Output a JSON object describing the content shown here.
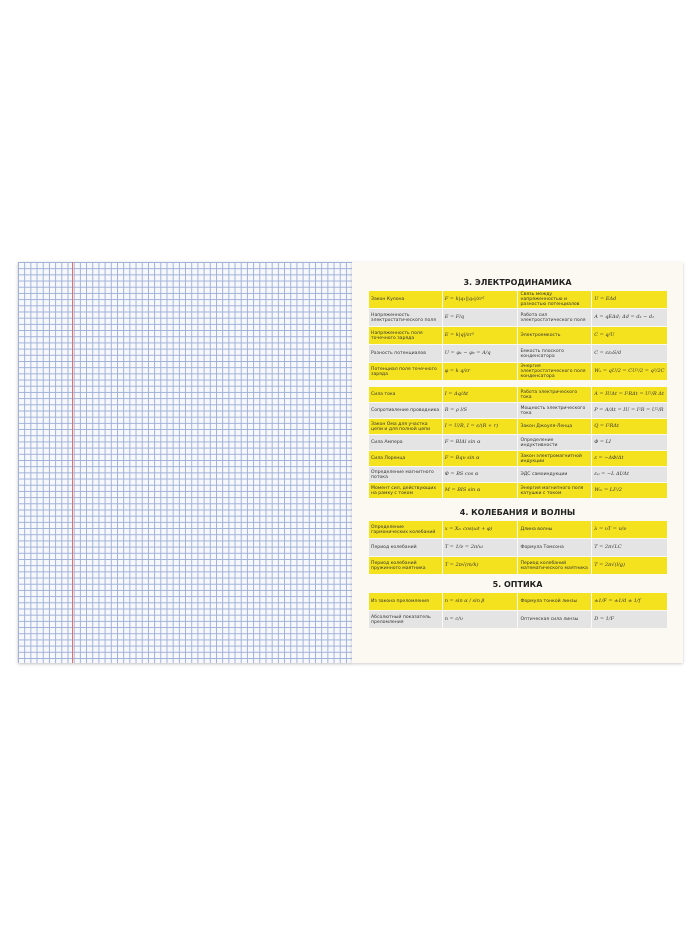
{
  "sections": [
    {
      "title": "3. ЭЛЕКТРОДИНАМИКА",
      "rows": [
        [
          "Закон Кулона",
          "F = k|q₁||q₂|/εr²",
          "Связь между напряженностью и разностью потенциалов",
          "U = EΔd"
        ],
        [
          "Напряженность электростатического поля",
          "E = F/q",
          "Работа сил электростатического поля",
          "A = qEΔd; Δd = d₂ − d₁"
        ],
        [
          "Напряженность поля точечного заряда",
          "E = k|q|/εr²",
          "Электроемкость",
          "C = q/U"
        ],
        [
          "Разность потенциалов",
          "U = φ₁ − φ₂ = A/q",
          "Емкость плоского конденсатора",
          "C = εε₀S/d"
        ],
        [
          "Потенциал поля точечного заряда",
          "φ = k q/εr",
          "Энергия электростатического поля конденсатора",
          "Wₑ = qU/2 = CU²/2 = q²/2C"
        ]
      ]
    },
    {
      "title": "",
      "rows": [
        [
          "Сила тока",
          "I = Δq/Δt",
          "Работа электрического тока",
          "A = IUΔt = I²RΔt = U²/R Δt"
        ],
        [
          "Сопротивление проводника",
          "R = ρ l/S",
          "Мощность электрического тока",
          "P = A/Δt = IU = I²R = U²/R"
        ],
        [
          "Закон Ома для участка цепи и для полной цепи",
          "I = U/R, I = ε/(R + r)",
          "Закон Джоуля-Ленца",
          "Q = I²RΔt"
        ],
        [
          "Сила Ампера",
          "F = BIΔl sin α",
          "Определение индуктивности",
          "Φ = LI"
        ],
        [
          "Сила Лоренца",
          "F = Bqυ sin α",
          "Закон электромагнитной индукции",
          "ε = −ΔΦ/Δt"
        ],
        [
          "Определение магнитного потока",
          "Φ = BS cos α",
          "ЭДС самоиндукции",
          "εₛᵢ = −L ΔI/Δt"
        ],
        [
          "Момент сил, действующих на рамку с током",
          "M = BIS sin α",
          "Энергия магнитного поля катушки с током",
          "Wₘ = LI²/2"
        ]
      ]
    },
    {
      "title": "4. КОЛЕБАНИЯ И ВОЛНЫ",
      "rows": [
        [
          "Определение гармонических колебаний",
          "x = Xₘ cos(ωt + φ)",
          "Длина волны",
          "λ = υT = υ/ν"
        ],
        [
          "Период колебаний",
          "T = 1/ν = 2π/ω",
          "Формула Томсона",
          "T = 2π√LC"
        ],
        [
          "Период колебаний пружинного маятника",
          "T = 2π√(m/k)",
          "Период колебаний математического маятника",
          "T = 2π√(l/g)"
        ]
      ]
    },
    {
      "title": "5. ОПТИКА",
      "rows": [
        [
          "Из закона преломления",
          "n = sin α / sin β",
          "Формула тонкой линзы",
          "±1/F = ±1/d ± 1/f"
        ],
        [
          "Абсолютный показатель преломления",
          "n = c/υ",
          "Оптическая сила линзы",
          "D = 1/F"
        ]
      ]
    }
  ],
  "colors": {
    "highlight": "#f4e21f",
    "alt": "#e4e4e4",
    "grid": "#9fb0d8",
    "margin_line": "#e07070"
  }
}
